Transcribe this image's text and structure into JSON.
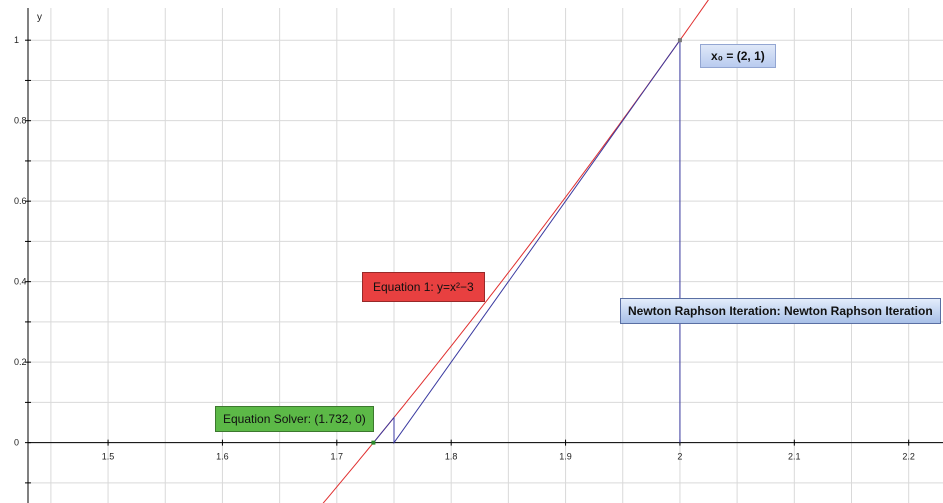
{
  "chart_data": {
    "type": "line",
    "title": "",
    "xlabel": "",
    "ylabel": "y",
    "xlim": [
      1.43,
      2.23
    ],
    "ylim": [
      -0.15,
      1.08
    ],
    "x_ticks": [
      1.5,
      1.6,
      1.7,
      1.8,
      1.9,
      2,
      2.1,
      2.2
    ],
    "x_tick_labels": [
      "1.5",
      "1.6",
      "1.7",
      "1.8",
      "1.9",
      "2",
      "2.1",
      "2.2"
    ],
    "y_ticks": [
      0,
      0.2,
      0.4,
      0.6,
      0.8,
      1
    ],
    "y_tick_labels": [
      "0",
      "0.2",
      "0.4",
      "0.6",
      "0.8",
      "1"
    ],
    "grid": true,
    "series": [
      {
        "name": "Equation 1: y=x²−3",
        "type": "curve",
        "color": "#e03030",
        "x_range": [
          1.68,
          2.03
        ]
      },
      {
        "name": "Newton Raphson Iteration: Newton Raphson Iteration",
        "type": "polyline",
        "color": "#3a3aa0",
        "points": [
          [
            2,
            0
          ],
          [
            2,
            1
          ],
          [
            1.75,
            0
          ],
          [
            1.75,
            0.0625
          ],
          [
            1.7321,
            0
          ]
        ]
      }
    ],
    "points": [
      {
        "name": "x₀",
        "x": 2,
        "y": 1,
        "color": "#777777"
      },
      {
        "name": "Equation Solver",
        "x": 1.732,
        "y": 0,
        "color": "#2c8a2c"
      }
    ],
    "annotations": {
      "solver": "Equation Solver: (1.732, 0)",
      "equation": "Equation 1: y=x²−3",
      "newton": "Newton Raphson Iteration: Newton Raphson Iteration",
      "x0": "x₀ = (2, 1)"
    }
  }
}
